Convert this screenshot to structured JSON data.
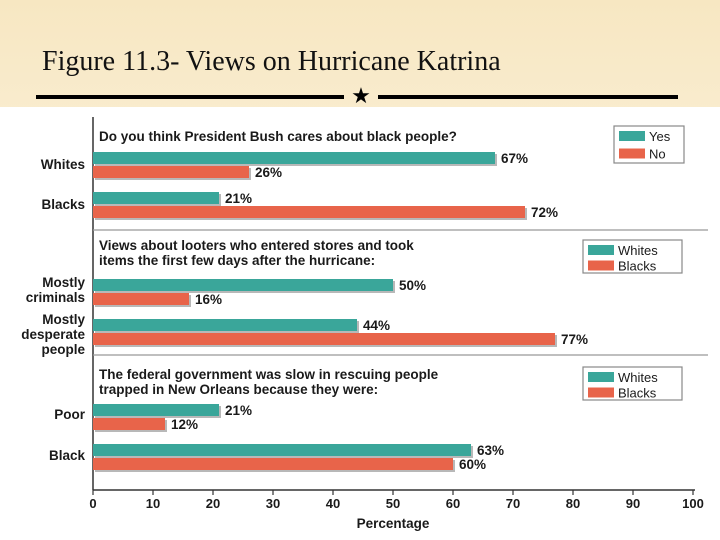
{
  "slide": {
    "title": "Figure 11.3- Views on Hurricane Katrina",
    "ornament": "★"
  },
  "colors": {
    "teal": "#3aa69a",
    "red": "#e8644a",
    "text": "#1a1a1a",
    "axis": "#333333"
  },
  "chart_data": {
    "type": "bar",
    "orientation": "horizontal",
    "xlabel": "Percentage",
    "xlim": [
      0,
      100
    ],
    "x_ticks": [
      0,
      10,
      20,
      30,
      40,
      50,
      60,
      70,
      80,
      90,
      100
    ],
    "value_suffix": "%",
    "panels": [
      {
        "question": [
          "Do you think President Bush cares about black people?"
        ],
        "legend": [
          "Yes",
          "No"
        ],
        "groups": [
          {
            "label": [
              "Whites"
            ],
            "values": [
              67,
              26
            ]
          },
          {
            "label": [
              "Blacks"
            ],
            "values": [
              21,
              72
            ]
          }
        ]
      },
      {
        "question": [
          "Views about looters who entered stores and took",
          "items the first few days after the hurricane:"
        ],
        "legend": [
          "Whites",
          "Blacks"
        ],
        "groups": [
          {
            "label": [
              "Mostly",
              "criminals"
            ],
            "values": [
              50,
              16
            ]
          },
          {
            "label": [
              "Mostly",
              "desperate",
              "people"
            ],
            "values": [
              44,
              77
            ]
          }
        ]
      },
      {
        "question": [
          "The federal government was slow in rescuing people",
          "trapped in New Orleans because they were:"
        ],
        "legend": [
          "Whites",
          "Blacks"
        ],
        "groups": [
          {
            "label": [
              "Poor"
            ],
            "values": [
              21,
              12
            ]
          },
          {
            "label": [
              "Black"
            ],
            "values": [
              63,
              60
            ]
          }
        ]
      }
    ]
  }
}
